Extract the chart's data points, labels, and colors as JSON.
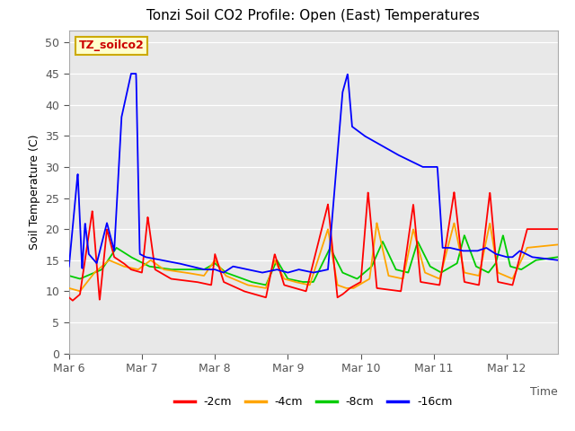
{
  "title": "Tonzi Soil CO2 Profile: Open (East) Temperatures",
  "ylabel": "Soil Temperature (C)",
  "xlabel": "Time",
  "ylim": [
    0,
    52
  ],
  "yticks": [
    0,
    5,
    10,
    15,
    20,
    25,
    30,
    35,
    40,
    45,
    50
  ],
  "legend_label": "TZ_soilco2",
  "series_labels": [
    "-2cm",
    "-4cm",
    "-8cm",
    "-16cm"
  ],
  "series_colors": [
    "#ff0000",
    "#ffa500",
    "#00cc00",
    "#0000ff"
  ],
  "plot_bg_color": "#e8e8e8",
  "x_day_labels": [
    "Mar 6",
    "Mar 7",
    "Mar 8",
    "Mar 9",
    "Mar 10",
    "Mar 11",
    "Mar 12"
  ],
  "x_day_positions": [
    0,
    1,
    2,
    3,
    4,
    5,
    6
  ],
  "xlim": [
    0,
    6.7
  ]
}
